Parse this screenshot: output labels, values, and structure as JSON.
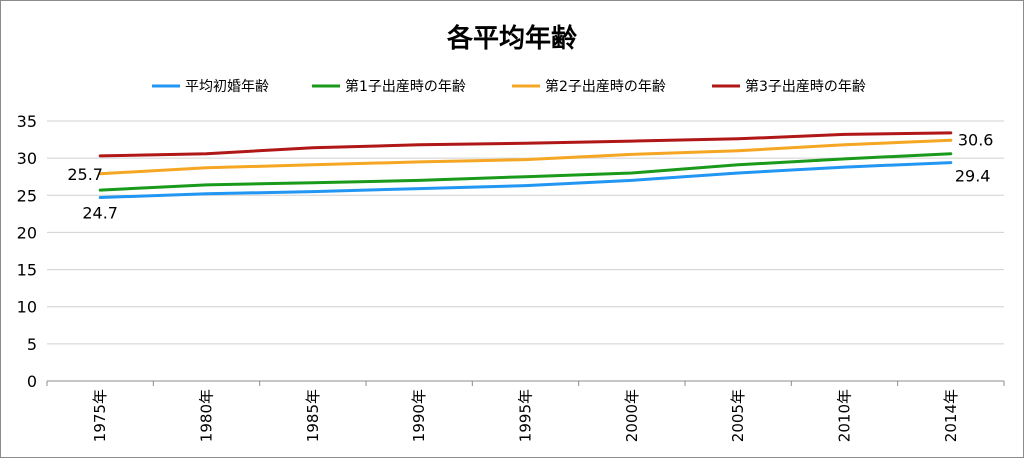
{
  "chart_data": {
    "type": "line",
    "title": "各平均年齢",
    "categories": [
      "1975年",
      "1980年",
      "1985年",
      "1990年",
      "1995年",
      "2000年",
      "2005年",
      "2010年",
      "2014年"
    ],
    "ylim": [
      0,
      35
    ],
    "yticks": [
      0,
      5,
      10,
      15,
      20,
      25,
      30,
      35
    ],
    "ytick_labels": [
      "0",
      "5",
      "10",
      "15",
      "20",
      "25",
      "30",
      "35"
    ],
    "grid": true,
    "legend_position": "top",
    "series": [
      {
        "name": "平均初婚年齢",
        "color": "#2196f3",
        "values": [
          24.7,
          25.2,
          25.5,
          25.9,
          26.3,
          27.0,
          28.0,
          28.8,
          29.4
        ]
      },
      {
        "name": "第1子出産時の年齢",
        "color": "#1a9a1a",
        "values": [
          25.7,
          26.4,
          26.7,
          27.0,
          27.5,
          28.0,
          29.1,
          29.9,
          30.6
        ]
      },
      {
        "name": "第2子出産時の年齢",
        "color": "#f5a623",
        "values": [
          27.9,
          28.7,
          29.1,
          29.5,
          29.8,
          30.5,
          31.0,
          31.8,
          32.4
        ]
      },
      {
        "name": "第3子出産時の年齢",
        "color": "#b01717",
        "values": [
          30.3,
          30.6,
          31.4,
          31.8,
          32.0,
          32.3,
          32.6,
          33.2,
          33.4
        ]
      }
    ],
    "data_labels": [
      {
        "series": 1,
        "index": 0,
        "text": "25.7"
      },
      {
        "series": 0,
        "index": 0,
        "text": "24.7"
      },
      {
        "series": 1,
        "index": 8,
        "text": "30.6"
      },
      {
        "series": 0,
        "index": 8,
        "text": "29.4"
      }
    ]
  }
}
